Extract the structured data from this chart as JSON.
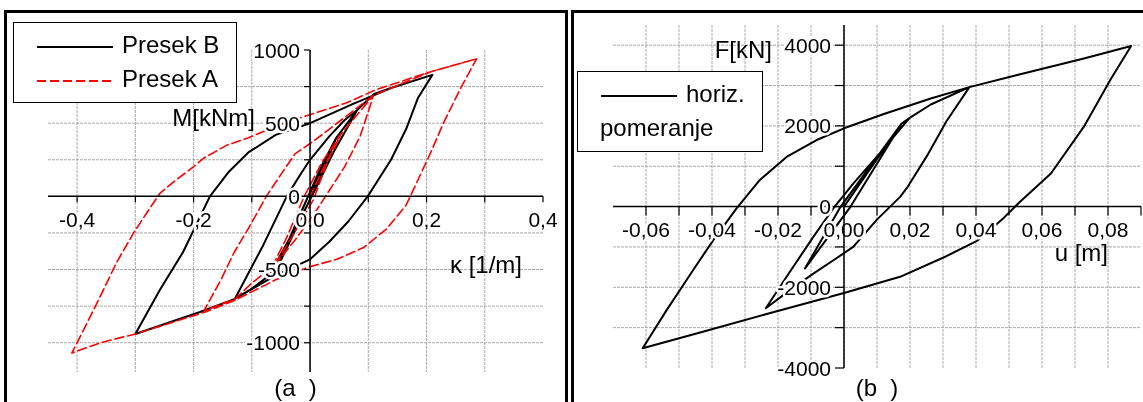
{
  "chart_data": [
    {
      "type": "line",
      "xlabel": "κ [1/m]",
      "ylabel": "M[kNm]",
      "annotations": [
        "(a  )"
      ],
      "xlim": [
        -0.45,
        0.4
      ],
      "ylim": [
        -1200,
        1000
      ],
      "xticks": [
        {
          "value": -0.4,
          "label": "-0,4"
        },
        {
          "value": -0.3,
          "label": null
        },
        {
          "value": -0.2,
          "label": "-0,2"
        },
        {
          "value": -0.1,
          "label": null
        },
        {
          "value": 0,
          "label": "0,0"
        },
        {
          "value": 0.1,
          "label": null
        },
        {
          "value": 0.2,
          "label": "0,2"
        },
        {
          "value": 0.3,
          "label": null
        },
        {
          "value": 0.4,
          "label": "0,4"
        }
      ],
      "yticks": [
        -1000,
        {
          "value": -750,
          "label": null
        },
        -500,
        {
          "value": -250,
          "label": null
        },
        0,
        {
          "value": 250,
          "label": null
        },
        500,
        {
          "value": 750,
          "label": null
        },
        1000
      ],
      "grid": true,
      "legend": "top left",
      "series": [
        {
          "name": "Presek B",
          "color": "#000000",
          "line_style": "solid",
          "x": [
            0,
            0.02,
            0.045,
            0.02,
            0,
            -0.03,
            -0.06,
            -0.03,
            0,
            0.02,
            0.045,
            0.081,
            0.04,
            0.003,
            -0.03,
            -0.07,
            -0.1,
            -0.129,
            -0.08,
            -0.04,
            -0.015,
            0,
            0.033,
            0.059,
            0.081,
            0.11,
            0.139,
            0.21,
            0.185,
            0.165,
            0.139,
            0.099,
            0.066,
            0.033,
            0,
            -0.059,
            -0.129,
            -0.189,
            -0.3,
            -0.258,
            -0.218,
            -0.172,
            -0.139,
            -0.106,
            -0.059,
            0,
            0.073,
            0.139,
            0.21
          ],
          "values": [
            0,
            180,
            400,
            160,
            -20,
            -270,
            -520,
            -240,
            30,
            210,
            400,
            590,
            300,
            0,
            -250,
            -540,
            -630,
            -700,
            -330,
            0,
            160,
            250,
            410,
            520,
            590,
            700,
            740,
            830,
            670,
            460,
            250,
            0,
            -170,
            -310,
            -430,
            -540,
            -700,
            -790,
            -940,
            -640,
            -380,
            0,
            170,
            300,
            420,
            500,
            630,
            740,
            830
          ]
        },
        {
          "name": "Presek A",
          "color": "#ff0000",
          "line_style": "dashed",
          "x": [
            0,
            0.025,
            0.054,
            0.03,
            0.006,
            -0.03,
            -0.075,
            -0.04,
            -0.01,
            0.02,
            0.054,
            0.109,
            0.086,
            0.059,
            0.033,
            0.007,
            -0.026,
            -0.059,
            -0.099,
            -0.129,
            -0.182,
            -0.153,
            -0.13,
            -0.106,
            -0.075,
            -0.05,
            -0.026,
            0.007,
            0.053,
            0.109,
            0.206,
            0.286,
            0.26,
            0.229,
            0.205,
            0.165,
            0.132,
            0.092,
            0.046,
            0,
            -0.059,
            -0.129,
            -0.18,
            -0.3,
            -0.36,
            -0.409,
            -0.4,
            -0.366,
            -0.332,
            -0.303,
            -0.28,
            -0.258,
            -0.237,
            -0.201,
            -0.183,
            -0.143,
            -0.106,
            -0.052,
            0.001,
            0.063,
            0.114,
            0.206,
            0.286
          ],
          "values": [
            0,
            210,
            430,
            240,
            -20,
            -270,
            -560,
            -280,
            0,
            230,
            430,
            690,
            410,
            200,
            40,
            -120,
            -300,
            -460,
            -590,
            -700,
            -780,
            -570,
            -380,
            -220,
            0,
            150,
            290,
            380,
            520,
            690,
            850,
            940,
            750,
            500,
            280,
            -60,
            -220,
            -350,
            -430,
            -480,
            -570,
            -710,
            -790,
            -940,
            -1000,
            -1070,
            -1000,
            -730,
            -450,
            -250,
            -110,
            20,
            90,
            200,
            260,
            350,
            400,
            490,
            560,
            640,
            730,
            850,
            940
          ]
        }
      ]
    },
    {
      "type": "line",
      "xlabel": "u [m]",
      "ylabel": "F[kN]",
      "annotations": [
        "(b  )"
      ],
      "xlim": [
        -0.07,
        0.09
      ],
      "ylim": [
        -4000,
        4500
      ],
      "xticks": [
        {
          "value": -0.06,
          "label": "-0,06"
        },
        {
          "value": -0.05,
          "label": null
        },
        {
          "value": -0.04,
          "label": "-0,04"
        },
        {
          "value": -0.03,
          "label": null
        },
        {
          "value": -0.02,
          "label": "-0,02"
        },
        {
          "value": -0.01,
          "label": null
        },
        {
          "value": 0,
          "label": "0,00"
        },
        {
          "value": 0.01,
          "label": null
        },
        {
          "value": 0.02,
          "label": "0,02"
        },
        {
          "value": 0.03,
          "label": null
        },
        {
          "value": 0.04,
          "label": "0,04"
        },
        {
          "value": 0.05,
          "label": null
        },
        {
          "value": 0.06,
          "label": "0,06"
        },
        {
          "value": 0.07,
          "label": null
        },
        {
          "value": 0.08,
          "label": "0,08"
        },
        {
          "value": 0.09,
          "label": null
        }
      ],
      "yticks": [
        -4000,
        {
          "value": -3000,
          "label": null
        },
        -2000,
        {
          "value": -1000,
          "label": null
        },
        0,
        {
          "value": 1000,
          "label": null
        },
        2000,
        {
          "value": 3000,
          "label": null
        },
        4000
      ],
      "grid": true,
      "legend": "top left",
      "series": [
        {
          "name": "horiz. pomeranje",
          "color": "#000000",
          "line_style": "solid",
          "x": [
            0,
            0.0175,
            0.002,
            -0.0118,
            -0.001,
            0.0175,
            0.0199,
            0.0263,
            0.038,
            0.031,
            0.0251,
            0.0193,
            0.017,
            0.0099,
            0.0028,
            -0.0032,
            -0.0093,
            -0.0164,
            -0.0237,
            -0.0174,
            -0.0093,
            -0.0032,
            0.0028,
            0.0099,
            0.016,
            0.0199,
            0.0263,
            0.038,
            0.0525,
            0.0727,
            0.087,
            0.0809,
            0.0727,
            0.0627,
            0.0531,
            0.0484,
            0.0403,
            0.031,
            0.017,
            0,
            -0.0237,
            -0.0436,
            -0.061,
            -0.0537,
            -0.0457,
            -0.0396,
            -0.0325,
            -0.0255,
            -0.0174,
            -0.0083,
            0,
            0.0123,
            0.0263,
            0.038
          ],
          "values": [
            0,
            2060,
            0,
            -1530,
            0,
            2060,
            2200,
            2530,
            2960,
            2110,
            1250,
            490,
            240,
            -330,
            -1000,
            -1330,
            -1660,
            -2070,
            -2520,
            -1740,
            -750,
            -40,
            570,
            1230,
            1820,
            2200,
            2530,
            2960,
            3260,
            3670,
            3980,
            3170,
            1980,
            820,
            100,
            -280,
            -850,
            -1230,
            -1740,
            -2140,
            -2670,
            -3120,
            -3510,
            -2560,
            -1570,
            -830,
            -40,
            660,
            1230,
            1650,
            1940,
            2300,
            2680,
            2960
          ]
        }
      ]
    }
  ]
}
